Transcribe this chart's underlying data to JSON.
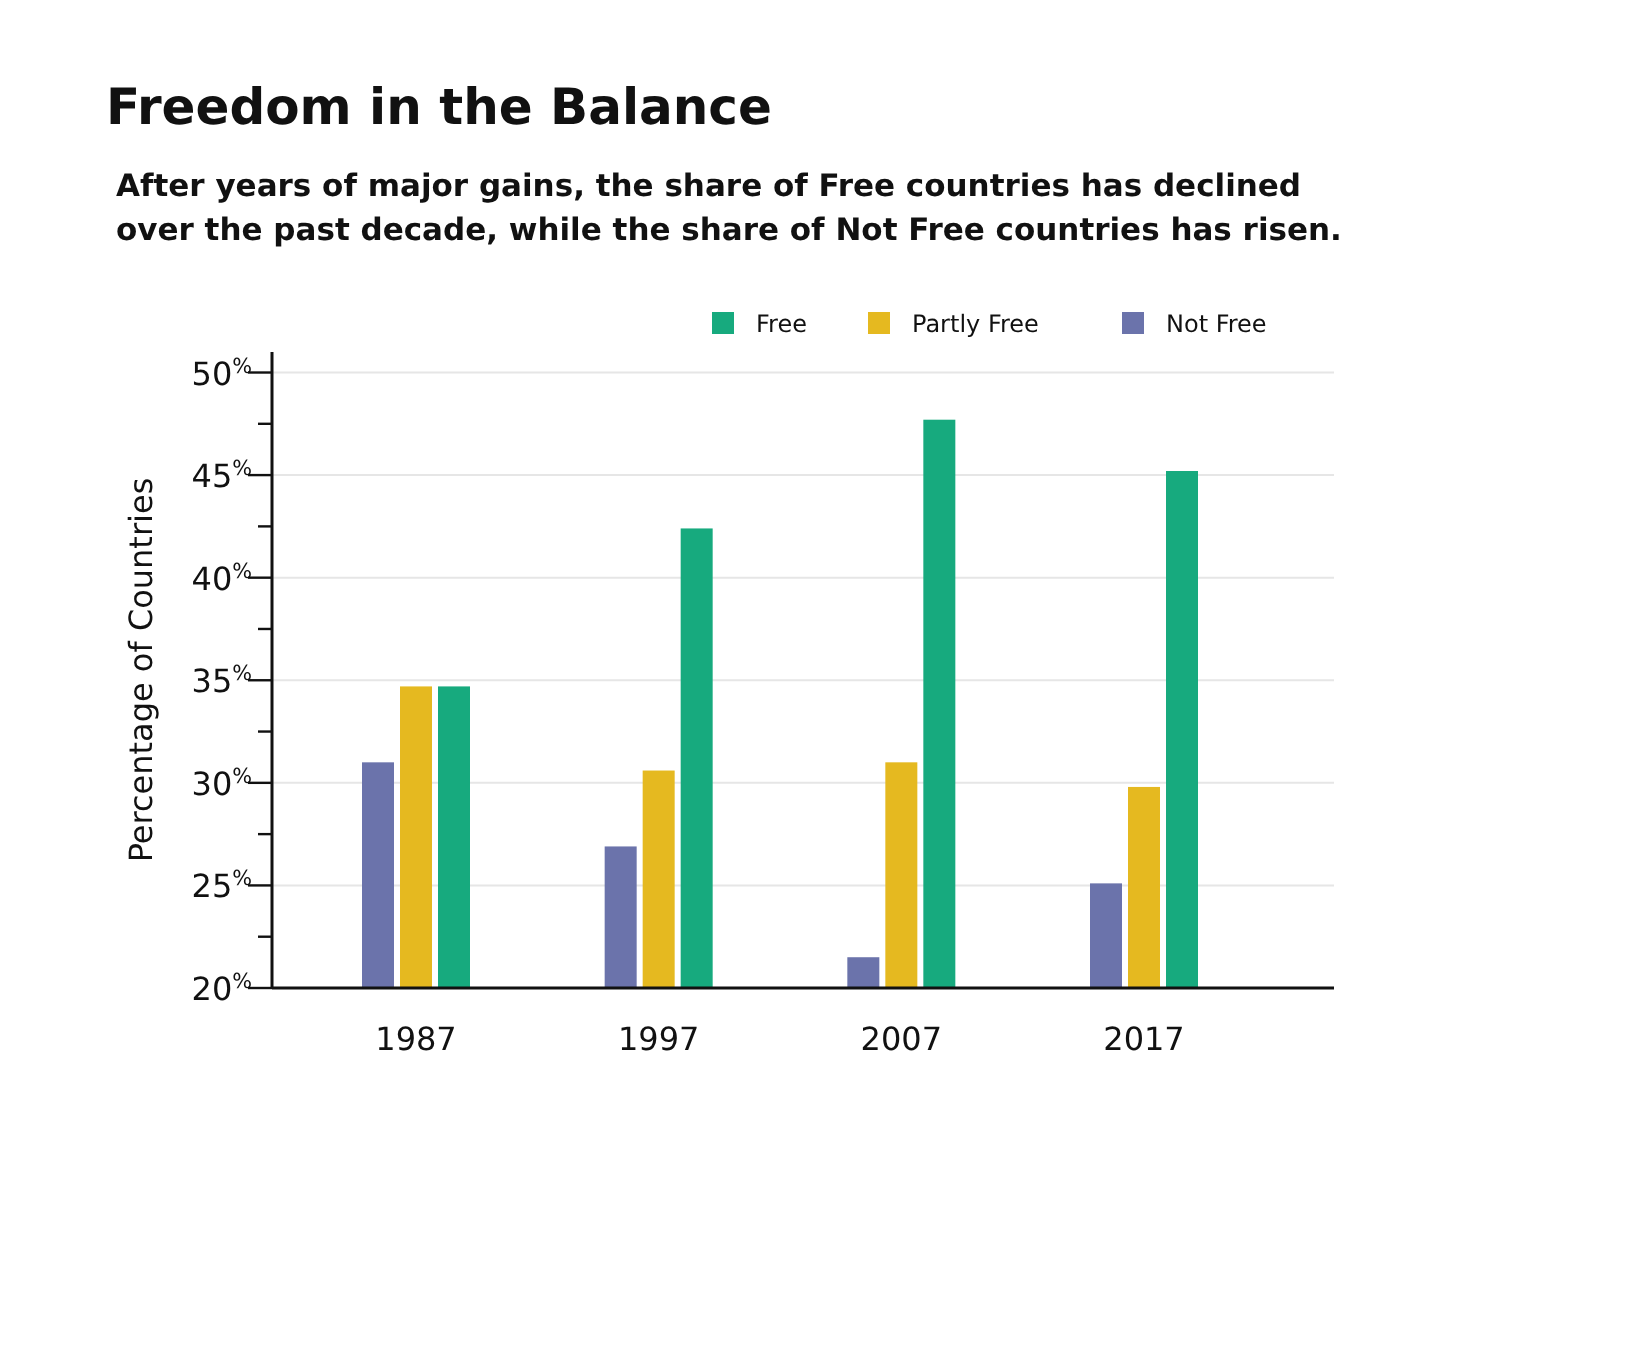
{
  "chart_data": {
    "type": "bar",
    "title": "Freedom in the Balance",
    "subtitle": "After years of major gains, the share of Free countries has declined over the past decade, while the share of Not Free countries has risen.",
    "ylabel": "Percentage of Countries",
    "categories": [
      "1987",
      "1997",
      "2007",
      "2017"
    ],
    "series": [
      {
        "name": "Not Free",
        "color": "#6b73ab",
        "values": [
          31.0,
          26.9,
          21.5,
          25.1
        ]
      },
      {
        "name": "Partly Free",
        "color": "#e5b920",
        "values": [
          34.7,
          30.6,
          31.0,
          29.8
        ]
      },
      {
        "name": "Free",
        "color": "#17aa7e",
        "values": [
          34.7,
          42.4,
          47.7,
          45.2
        ]
      }
    ],
    "ylim": [
      20,
      51
    ],
    "yticks": [
      {
        "value": 20,
        "label": "20$^{%}$"
      },
      {
        "value": 22.5,
        "label": null
      },
      {
        "value": 25,
        "label": "25$^{%}$"
      },
      {
        "value": 27.5,
        "label": null
      },
      {
        "value": 30,
        "label": "30$^{%}$"
      },
      {
        "value": 32.5,
        "label": null
      },
      {
        "value": 35,
        "label": "35$^{%}$"
      },
      {
        "value": 37.5,
        "label": null
      },
      {
        "value": 40,
        "label": "40$^{%}$"
      },
      {
        "value": 42.5,
        "label": null
      },
      {
        "value": 45,
        "label": "45$^{%}$"
      },
      {
        "value": 47.5,
        "label": null
      },
      {
        "value": 50,
        "label": "50$^{%}$"
      }
    ],
    "grid": "y",
    "legend": "top right"
  }
}
